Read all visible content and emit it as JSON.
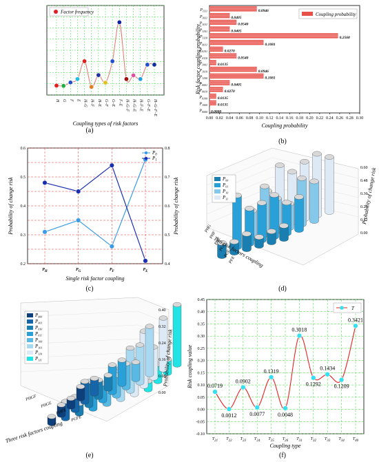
{
  "panels": {
    "a": "(a)",
    "b": "(b)",
    "c": "(c)",
    "d": "(d)",
    "e": "(e)",
    "f": "(f)"
  },
  "chart_data": [
    {
      "id": "a",
      "type": "line",
      "legend": [
        "Factor frequency"
      ],
      "xlabel": "Coupling types of risk factors",
      "ylabel": "",
      "categories": [
        "H",
        "G",
        "F",
        "E",
        "H–G",
        "H–F",
        "H–E",
        "G–F",
        "G–E",
        "F–E",
        "H–G–F",
        "H–G–E",
        "H–F–E",
        "G–F–E",
        "H–G–F–E"
      ],
      "values": [
        0.015,
        0.014,
        0.027,
        0.04,
        0.108,
        0.01,
        0.055,
        0.026,
        0.108,
        0.257,
        0.04,
        0.054,
        0.04,
        0.095,
        0.095
      ],
      "ylim": [
        0,
        0.3
      ],
      "grid": true,
      "colors": {
        "line": "#e8726e",
        "grid": "#33dd33"
      }
    },
    {
      "id": "b",
      "type": "bar",
      "orientation": "horizontal",
      "legend": [
        "Coupling probability"
      ],
      "xlabel": "Coupling probability",
      "ylabel": "Risk factor coupling probability",
      "categories": [
        "P1111",
        "P0111",
        "P1011",
        "P1101",
        "P1110",
        "P0011",
        "P0101",
        "P0110",
        "P1001",
        "P1010",
        "P1100",
        "P0001",
        "P0010",
        "P0100",
        "P1000",
        "P0000"
      ],
      "values": [
        0.0946,
        0.0405,
        0.054,
        0.0405,
        0.2568,
        0.1081,
        0.027,
        0.054,
        0.0135,
        0.0946,
        0.1081,
        0.0405,
        0.027,
        0.0135,
        0.0135,
        0.0
      ],
      "labels": [
        "0.0946",
        "0.0405",
        "0.0540",
        "0.0405",
        "0.2568",
        "0.1081",
        "0.0270",
        "0.0540",
        "0.0135",
        "0.0946",
        "0.1081",
        "0.0405",
        "0.0270",
        "0.0135",
        "0.0135",
        "0.0000"
      ],
      "xticks": [
        "0.00",
        "0.02",
        "0.04",
        "0.06",
        "0.08",
        "0.10",
        "0.12",
        "0.14",
        "0.16",
        "0.18",
        "0.20",
        "0.22",
        "0.24",
        "0.26",
        "0.28",
        "0.30"
      ],
      "xlim": [
        0,
        0.3
      ],
      "colors": {
        "bar": "#e8504a"
      }
    },
    {
      "id": "c",
      "type": "line",
      "legend": [
        "P0",
        "P1"
      ],
      "xlabel": "Single risk factor coupling",
      "ylabel": "Probability of change risk",
      "ylabel_right": "Probability of change risk",
      "categories": [
        "PH",
        "PG",
        "PF",
        "PE"
      ],
      "series": [
        {
          "name": "P0",
          "values": [
            0.31,
            0.35,
            0.26,
            0.56
          ],
          "axis": "left",
          "color": "#3a9be8"
        },
        {
          "name": "P1",
          "values": [
            0.68,
            0.65,
            0.74,
            0.41
          ],
          "axis": "right",
          "color": "#1a2fb0"
        }
      ],
      "ylim_left": [
        0.2,
        0.6
      ],
      "ylim_right": [
        0.4,
        0.8
      ],
      "yticks_left": [
        "0.2",
        "0.3",
        "0.4",
        "0.5",
        "0.6"
      ],
      "yticks_right": [
        "0.4",
        "0.5",
        "0.6",
        "0.7",
        "0.8"
      ],
      "grid": true
    },
    {
      "id": "d",
      "type": "bar",
      "legend": [
        "P00",
        "P01",
        "P10",
        "P11"
      ],
      "xlabel": "Two risk factors coupling",
      "zlabel": "Probability of change risk",
      "categories": [
        "PHG",
        "PHF",
        "PHE",
        "PGF",
        "PGE",
        "PFE"
      ],
      "zticks": [
        "0.00",
        "0.12",
        "0.24",
        "0.36",
        "0.48",
        "0.60"
      ],
      "zlim": [
        0,
        0.6
      ],
      "colors": [
        "#1a7fb0",
        "#2aa0d8",
        "#86c8ea",
        "#dde9f5"
      ]
    },
    {
      "id": "e",
      "type": "bar",
      "legend": [
        "P000",
        "P001",
        "P010",
        "P011",
        "P100",
        "P101",
        "P110",
        "P111"
      ],
      "xlabel": "Three risk factors coupling",
      "zlabel": "Probability of change risk",
      "categories": [
        "PHGF",
        "PHGE",
        "PHFE",
        "PGFE"
      ],
      "zticks": [
        "0.00",
        "0.08",
        "0.16",
        "0.24",
        "0.32",
        "0.40"
      ],
      "zlim": [
        0,
        0.4
      ],
      "colors": [
        "#0d3f7a",
        "#1565a8",
        "#1a7fb0",
        "#2aa0d8",
        "#58b9e4",
        "#a9d9f1",
        "#dde9f5",
        "#22e4e4"
      ]
    },
    {
      "id": "f",
      "type": "line",
      "legend": [
        "T"
      ],
      "xlabel": "Coupling type",
      "ylabel": "Risk coupling value",
      "categories": [
        "T21",
        "T22",
        "T23",
        "T24",
        "T25",
        "T26",
        "T31",
        "T32",
        "T33",
        "T34",
        "T40"
      ],
      "values": [
        0.0719,
        0.0012,
        0.0902,
        0.0077,
        0.1319,
        0.0048,
        0.3018,
        0.1292,
        0.1434,
        0.1209,
        0.3421
      ],
      "labels": [
        "0.0719",
        "0.0012",
        "0.0902",
        "0.0077",
        "0.1319",
        "0.0048",
        "0.3018",
        "0.1292",
        "0.1434",
        "0.1209",
        "0.3421"
      ],
      "ylim": [
        -0.1,
        0.45
      ],
      "yticks": [
        "-0.10",
        "-0.05",
        "0.00",
        "0.05",
        "0.10",
        "0.15",
        "0.20",
        "0.25",
        "0.30",
        "0.35",
        "0.40",
        "0.45"
      ],
      "grid": true,
      "colors": {
        "line": "#e82020",
        "marker": "#35e0f0",
        "grid": "#33dd33"
      }
    }
  ]
}
